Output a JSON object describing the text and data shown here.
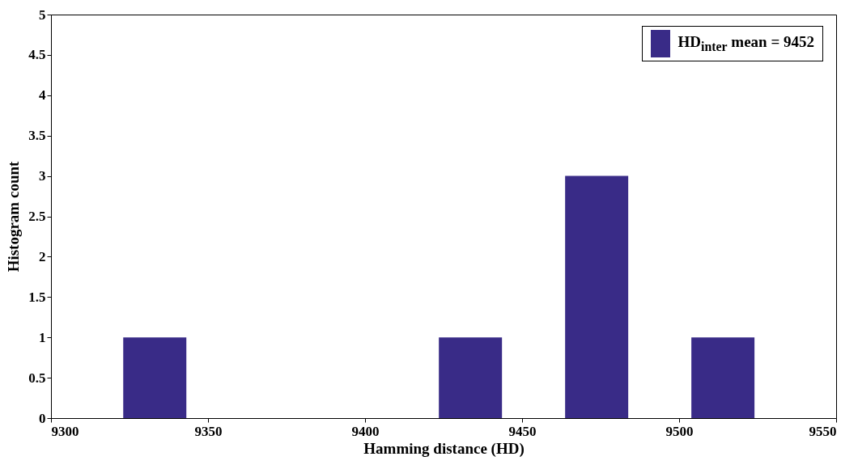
{
  "chart_data": {
    "type": "histogram",
    "xlabel": "Hamming distance (HD)",
    "ylabel": "Histogram count",
    "bins": [
      9323,
      9343.1,
      9363.2,
      9383.3,
      9403.4,
      9423.5,
      9443.6,
      9463.7,
      9483.8,
      9503.9,
      9524
    ],
    "series": [
      {
        "name": "HD$_{inter}$ mean = 9452",
        "color": "#392b87",
        "values": [
          1,
          0,
          0,
          0,
          0,
          1,
          0,
          3,
          0,
          1
        ]
      }
    ],
    "xlim": [
      9300,
      9550
    ],
    "xticks": [
      9300,
      9350,
      9400,
      9450,
      9500,
      9550
    ],
    "ylim": [
      0,
      5
    ],
    "yticks": [
      0,
      0.5,
      1,
      1.5,
      2,
      2.5,
      3,
      3.5,
      4,
      4.5,
      5
    ],
    "legend": "top right"
  }
}
